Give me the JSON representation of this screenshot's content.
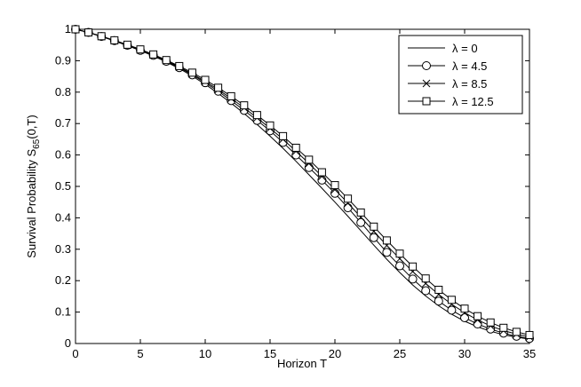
{
  "chart_data": {
    "type": "line",
    "x_label": "Horizon T",
    "y_label": {
      "main": "Survival Probability S",
      "sub": "65",
      "tail": "(0,T)"
    },
    "x": [
      0,
      1,
      2,
      3,
      4,
      5,
      6,
      7,
      8,
      9,
      10,
      11,
      12,
      13,
      14,
      15,
      16,
      17,
      18,
      19,
      20,
      21,
      22,
      23,
      24,
      25,
      26,
      27,
      28,
      29,
      30,
      31,
      32,
      33,
      34,
      35
    ],
    "series": [
      {
        "name": "λ = 0",
        "color": "#000000",
        "marker": "none",
        "values": [
          1,
          0.99,
          0.977,
          0.963,
          0.948,
          0.932,
          0.915,
          0.896,
          0.875,
          0.851,
          0.825,
          0.796,
          0.765,
          0.732,
          0.697,
          0.66,
          0.621,
          0.58,
          0.537,
          0.494,
          0.45,
          0.405,
          0.359,
          0.313,
          0.268,
          0.226,
          0.186,
          0.151,
          0.12,
          0.093,
          0.071,
          0.053,
          0.039,
          0.028,
          0.02,
          0.014
        ]
      },
      {
        "name": "λ = 4.5",
        "color": "#000000",
        "marker": "circle",
        "values": [
          1,
          0.99,
          0.977,
          0.964,
          0.949,
          0.933,
          0.917,
          0.898,
          0.878,
          0.855,
          0.83,
          0.803,
          0.773,
          0.742,
          0.71,
          0.677,
          0.64,
          0.6,
          0.56,
          0.52,
          0.478,
          0.432,
          0.385,
          0.337,
          0.29,
          0.247,
          0.205,
          0.168,
          0.135,
          0.106,
          0.082,
          0.062,
          0.046,
          0.033,
          0.023,
          0.016
        ]
      },
      {
        "name": "λ = 8.5",
        "color": "#000000",
        "marker": "cross",
        "values": [
          1,
          0.99,
          0.977,
          0.964,
          0.95,
          0.934,
          0.918,
          0.9,
          0.88,
          0.858,
          0.834,
          0.808,
          0.78,
          0.75,
          0.718,
          0.685,
          0.65,
          0.612,
          0.573,
          0.532,
          0.49,
          0.447,
          0.402,
          0.357,
          0.312,
          0.27,
          0.229,
          0.191,
          0.156,
          0.125,
          0.098,
          0.075,
          0.056,
          0.041,
          0.03,
          0.021
        ]
      },
      {
        "name": "λ = 12.5",
        "color": "#000000",
        "marker": "square",
        "values": [
          1,
          0.99,
          0.978,
          0.965,
          0.951,
          0.936,
          0.92,
          0.902,
          0.883,
          0.862,
          0.839,
          0.814,
          0.787,
          0.758,
          0.727,
          0.694,
          0.66,
          0.623,
          0.585,
          0.545,
          0.504,
          0.461,
          0.417,
          0.372,
          0.328,
          0.286,
          0.245,
          0.207,
          0.171,
          0.139,
          0.111,
          0.087,
          0.067,
          0.05,
          0.037,
          0.027
        ]
      }
    ],
    "xlim": [
      0,
      35
    ],
    "xticks": [
      0,
      5,
      10,
      15,
      20,
      25,
      30,
      35
    ],
    "ylim": [
      0,
      1
    ],
    "yticks": [
      0,
      0.1,
      0.2,
      0.3,
      0.4,
      0.5,
      0.6,
      0.7,
      0.8,
      0.9,
      1
    ],
    "grid": false,
    "legend": "upper right"
  }
}
